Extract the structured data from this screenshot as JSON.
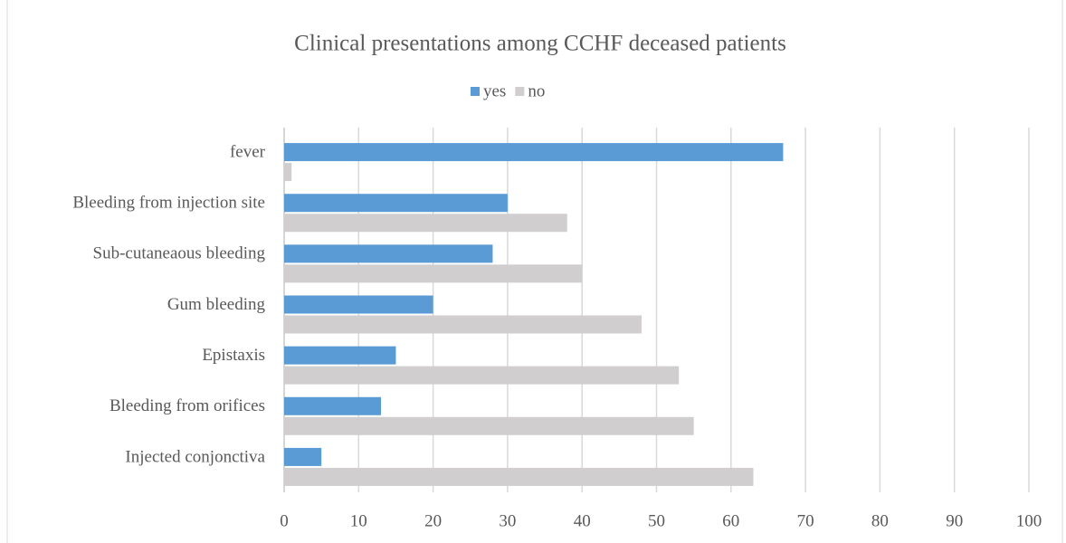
{
  "chart_data": {
    "type": "bar",
    "orientation": "horizontal",
    "title": "Clinical presentations among CCHF deceased patients",
    "categories": [
      "fever",
      "Bleeding from injection site",
      "Sub-cutaneaous bleeding",
      "Gum bleeding",
      "Epistaxis",
      "Bleeding from orifices",
      "Injected conjonctiva"
    ],
    "series": [
      {
        "name": "yes",
        "color": "#5b9bd5",
        "values": [
          67,
          30,
          28,
          20,
          15,
          13,
          5
        ]
      },
      {
        "name": "no",
        "color": "#d0cece",
        "values": [
          1,
          38,
          40,
          48,
          53,
          55,
          63
        ]
      }
    ],
    "xlim": [
      0,
      100
    ],
    "xticks": [
      0,
      10,
      20,
      30,
      40,
      50,
      60,
      70,
      80,
      90,
      100
    ],
    "grid": true,
    "legend": "top"
  }
}
